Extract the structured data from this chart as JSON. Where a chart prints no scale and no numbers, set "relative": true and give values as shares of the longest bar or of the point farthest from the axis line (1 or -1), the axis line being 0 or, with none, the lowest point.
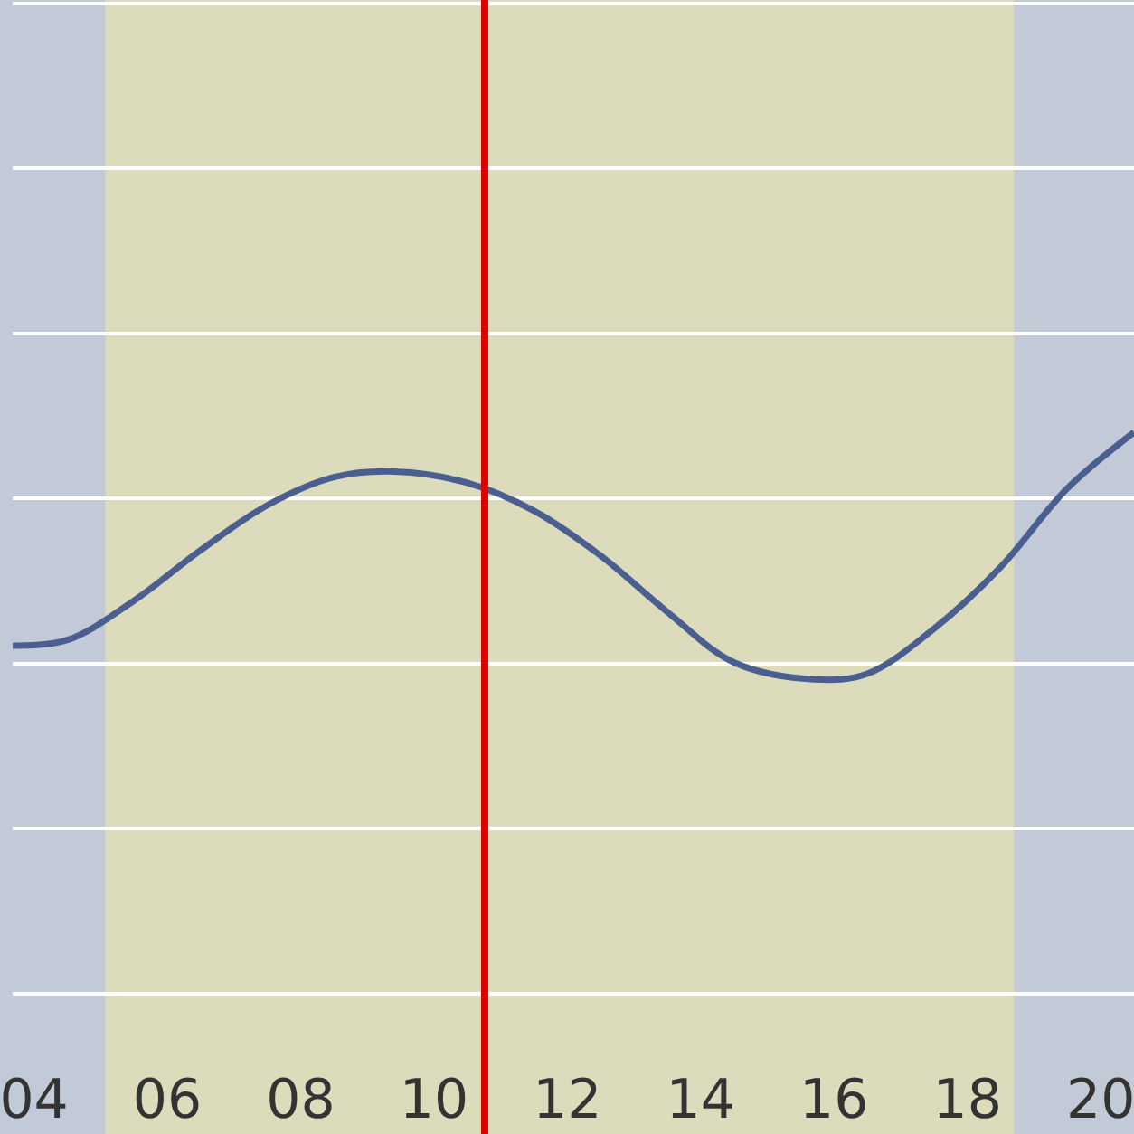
{
  "chart_data": {
    "type": "line",
    "relative": true,
    "x": [
      3.68,
      4.5,
      5.5,
      6.5,
      7.5,
      8.5,
      9.4,
      10.5,
      11.5,
      12.5,
      13.5,
      14.5,
      15.7,
      16.5,
      17.5,
      18.5,
      19.5,
      20.5
    ],
    "series": [
      {
        "color": "#4a5f90",
        "values": [
          0.62,
          0.63,
          0.7,
          0.79,
          0.87,
          0.92,
          0.93,
          0.91,
          0.86,
          0.78,
          0.68,
          0.59,
          0.56,
          0.57,
          0.65,
          0.76,
          0.9,
          1.0
        ]
      }
    ],
    "xlim": [
      3.68,
      20.5
    ],
    "xticks": [
      {
        "value": 4,
        "label": "04"
      },
      {
        "value": 6,
        "label": "06"
      },
      {
        "value": 8,
        "label": "08"
      },
      {
        "value": 10,
        "label": "10"
      },
      {
        "value": 12,
        "label": "12"
      },
      {
        "value": 14,
        "label": "14"
      },
      {
        "value": 16,
        "label": "16"
      },
      {
        "value": 18,
        "label": "18"
      },
      {
        "value": 20,
        "label": "20"
      }
    ],
    "bands": [
      {
        "axis": "x",
        "from": 5.07,
        "to": 18.7,
        "color": "#dcdcbc"
      }
    ],
    "ref_lines": [
      {
        "axis": "x",
        "value": 10.76,
        "color": "#e00000",
        "line_style": "solid"
      }
    ],
    "grid": "y",
    "marker": "none",
    "line_style": "solid",
    "legend": false
  }
}
